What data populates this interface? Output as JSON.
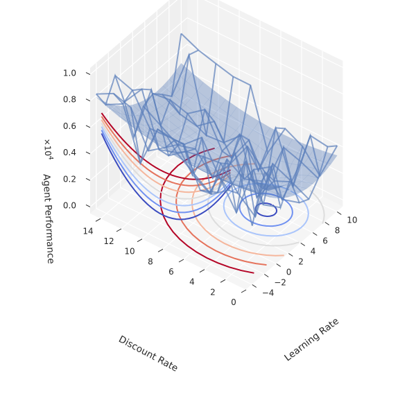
{
  "chart_data": {
    "type": "surface3d",
    "xlabel": "Learning Rate",
    "ylabel": "Discount Rate",
    "zlabel": "Agent Performance",
    "z_multiplier": "×10",
    "z_exponent": "4",
    "x_ticks": [
      "−4",
      "−2",
      "0",
      "2",
      "4",
      "6",
      "8",
      "10"
    ],
    "y_ticks": [
      "0",
      "2",
      "4",
      "6",
      "8",
      "10",
      "12",
      "14"
    ],
    "z_ticks": [
      "0.0",
      "0.2",
      "0.4",
      "0.6",
      "0.8",
      "1.0"
    ],
    "xlim": [
      -5,
      11
    ],
    "ylim": [
      0,
      15
    ],
    "zlim": [
      -0.05,
      1.05
    ],
    "surface": {
      "description_free": true,
      "color": "#4a74b4",
      "alpha": 0.5,
      "x_range": [
        -4,
        10
      ],
      "y_range": [
        0,
        15
      ],
      "z_min": 0.28,
      "z_max": 0.8
    },
    "wireframe": {
      "color": "#5b7fba"
    },
    "contour_colormap": "coolwarm",
    "contour_levels": [
      0.05,
      0.15,
      0.25,
      0.35,
      0.45,
      0.55,
      0.65
    ],
    "grid": true
  }
}
